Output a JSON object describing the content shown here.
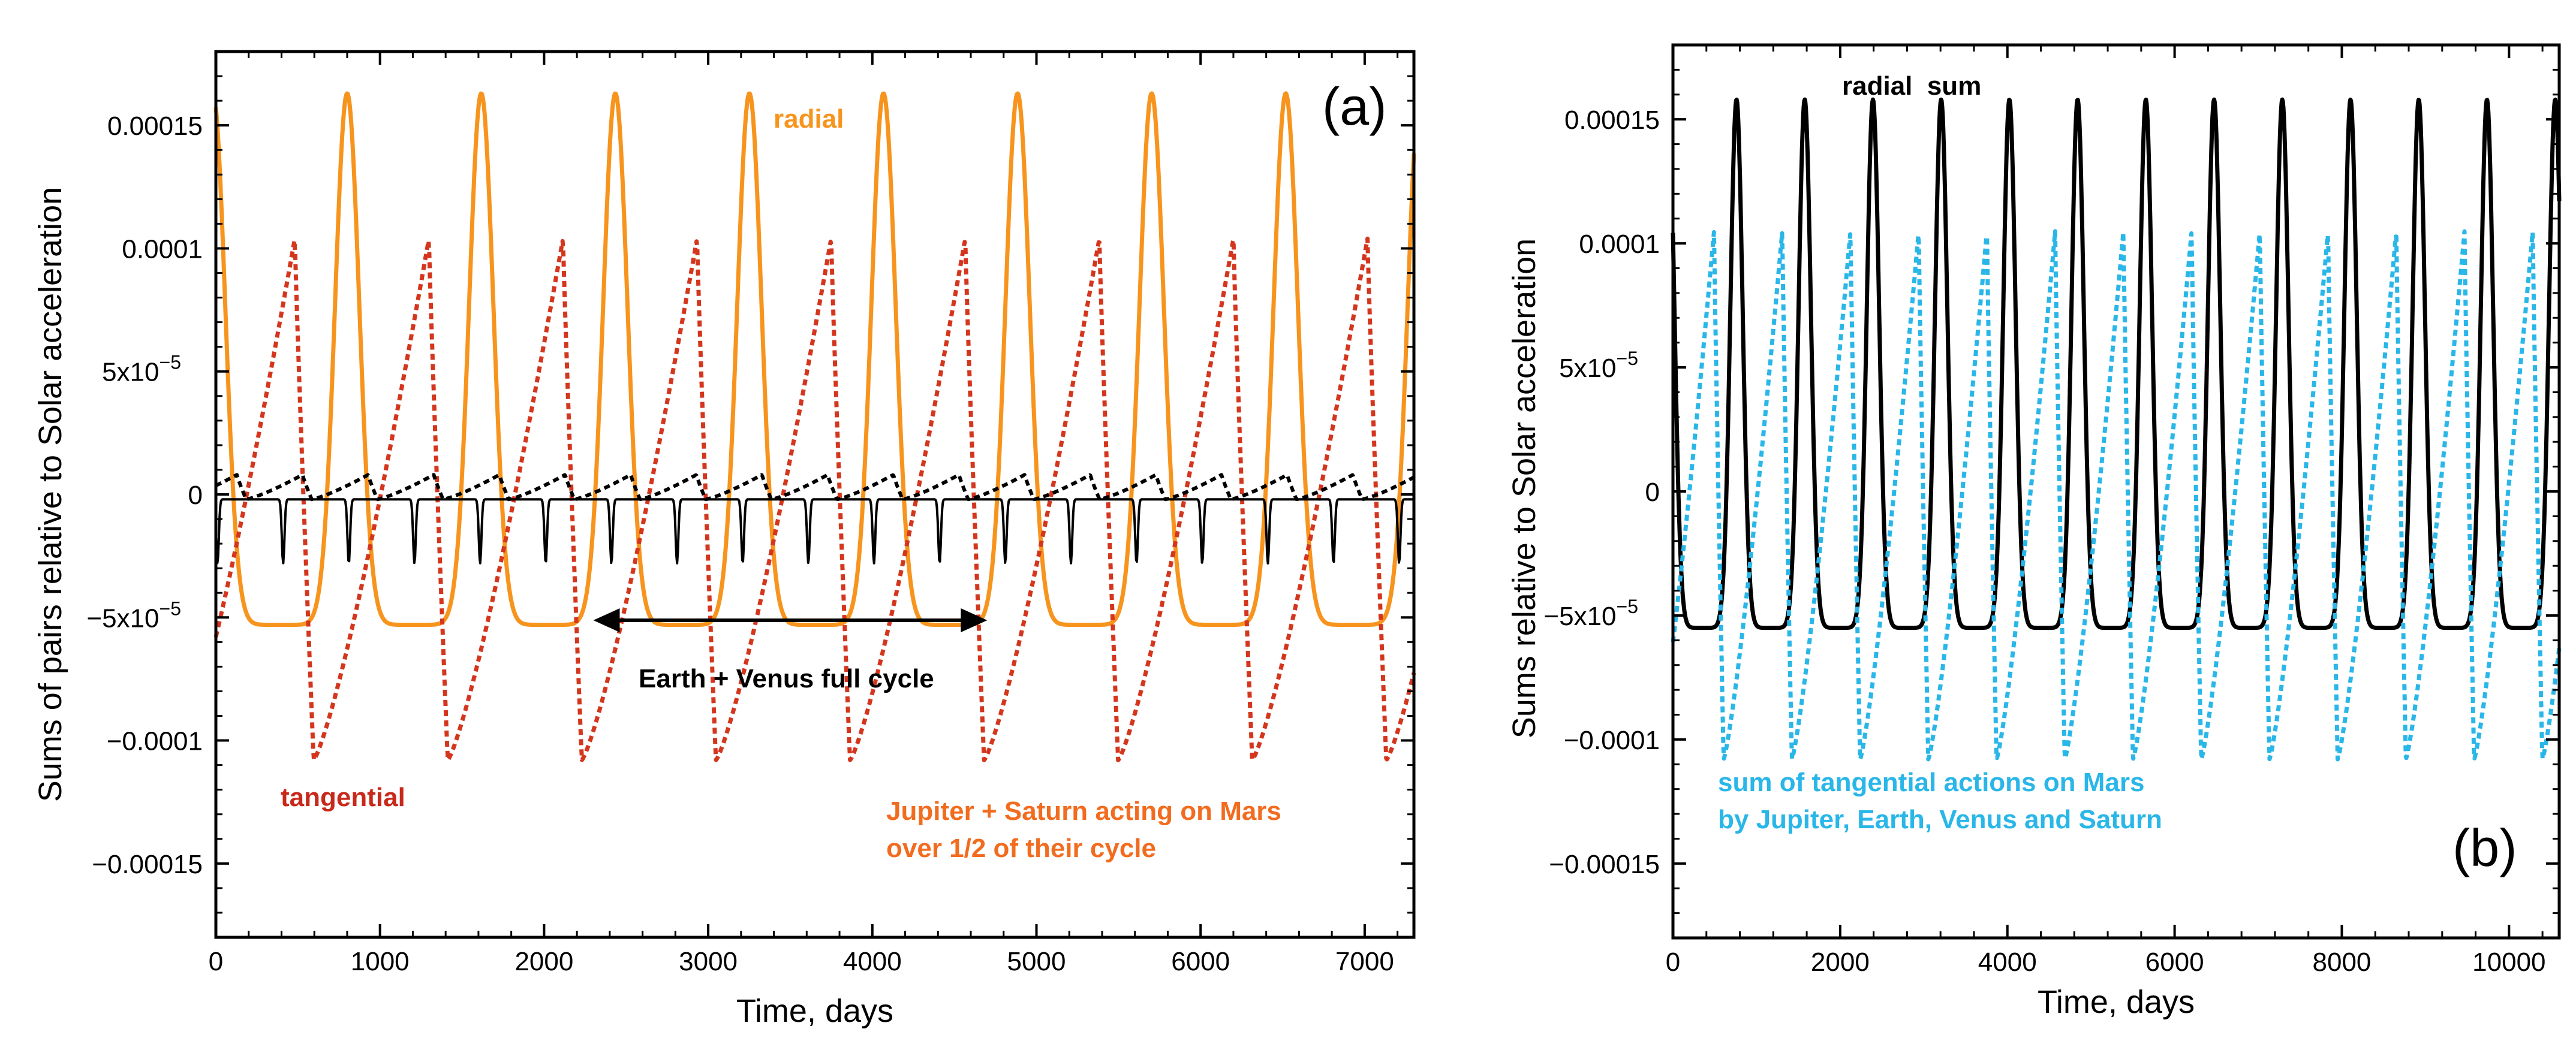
{
  "chart_data": [
    {
      "type": "line",
      "panel_label": "(a)",
      "xlabel": "Time, days",
      "ylabel": "Sums of pairs relative to Solar acceleration",
      "xlim": [
        0,
        7300
      ],
      "ylim": [
        -0.00018,
        0.00018
      ],
      "x_ticks": [
        {
          "value": 0,
          "label": "0"
        },
        {
          "value": 1000,
          "label": "1000"
        },
        {
          "value": 2000,
          "label": "2000"
        },
        {
          "value": 3000,
          "label": "3000"
        },
        {
          "value": 4000,
          "label": "4000"
        },
        {
          "value": 5000,
          "label": "5000"
        },
        {
          "value": 6000,
          "label": "6000"
        },
        {
          "value": 7000,
          "label": "7000"
        }
      ],
      "y_ticks": [
        {
          "value": 0.00015,
          "label": "0.00015"
        },
        {
          "value": 0.0001,
          "label": "0.0001"
        },
        {
          "value": 5e-05,
          "label": "5x10",
          "sup": "−5"
        },
        {
          "value": 0,
          "label": "0"
        },
        {
          "value": -5e-05,
          "label": "−5x10",
          "sup": "−5"
        },
        {
          "value": -0.0001,
          "label": "−0.0001"
        },
        {
          "value": -0.00015,
          "label": "−0.00015"
        }
      ],
      "series": [
        {
          "name": "radial",
          "label": "radial",
          "color": "#F7941D",
          "style": "solid",
          "model": "radial",
          "period": 817,
          "phase": 800,
          "max": 0.000163,
          "min": -5.3e-05
        },
        {
          "name": "tangential",
          "label": "tangential",
          "color": "#D4361D",
          "style": "dotted",
          "model": "saw",
          "period": 817,
          "phase": 710,
          "max": 0.000104,
          "min": -0.000108
        },
        {
          "name": "Earth + Venus radial",
          "label": "",
          "color": "#000000",
          "style": "solid",
          "model": "spikes",
          "period": 400,
          "phase": 10,
          "max": -2e-06,
          "min": -2.8e-05
        },
        {
          "name": "Earth + Venus tangential",
          "label": "",
          "color": "#000000",
          "style": "dotted",
          "model": "saw",
          "period": 400,
          "phase": 240,
          "max": 8e-06,
          "min": -2e-06
        }
      ],
      "annotations": {
        "radial_label": "radial",
        "tangential_label": "tangential",
        "cycle_label": "Earth + Venus full cycle",
        "cycle_range": [
          2300,
          4700
        ],
        "cycle_y": -5.3e-05,
        "jupiter_saturn_line1": "Jupiter + Saturn acting on Mars",
        "jupiter_saturn_line2": "over 1/2 of their cycle"
      },
      "colors": {
        "radial": "#F7941D",
        "tangential_label": "#C8291B",
        "jupiter_saturn_label": "#F26C1F",
        "black": "#000000"
      }
    },
    {
      "type": "line",
      "panel_label": "(b)",
      "xlabel": "Time, days",
      "ylabel": "Sums relative to Solar acceleration",
      "xlim": [
        0,
        10600
      ],
      "ylim": [
        -0.00018,
        0.00018
      ],
      "x_ticks": [
        {
          "value": 0,
          "label": "0"
        },
        {
          "value": 2000,
          "label": "2000"
        },
        {
          "value": 4000,
          "label": "4000"
        },
        {
          "value": 6000,
          "label": "6000"
        },
        {
          "value": 8000,
          "label": "8000"
        },
        {
          "value": 10000,
          "label": "10000"
        }
      ],
      "y_ticks": [
        {
          "value": 0.00015,
          "label": "0.00015"
        },
        {
          "value": 0.0001,
          "label": "0.0001"
        },
        {
          "value": 5e-05,
          "label": "5x10",
          "sup": "−5"
        },
        {
          "value": 0,
          "label": "0"
        },
        {
          "value": -5e-05,
          "label": "−5x10",
          "sup": "−5"
        },
        {
          "value": -0.0001,
          "label": "−0.0001"
        },
        {
          "value": -0.00015,
          "label": "−0.00015"
        }
      ],
      "series": [
        {
          "name": "radial sum",
          "label": "radial  sum",
          "color": "#000000",
          "style": "solid",
          "model": "radial",
          "period": 816,
          "phase": 760,
          "max": 0.000158,
          "min": -5.5e-05
        },
        {
          "name": "sum of tangential actions on Mars",
          "label": "sum of tangential actions on Mars by Jupiter, Earth, Venus and Saturn",
          "color": "#29B6E8",
          "style": "dotted",
          "model": "saw",
          "period": 816,
          "phase": 720,
          "max": 0.000105,
          "min": -0.000108
        }
      ],
      "annotations": {
        "radial_sum_label": "radial  sum",
        "tangential_line1": "sum of tangential actions on Mars",
        "tangential_line2": "by Jupiter, Earth, Venus and Saturn"
      },
      "colors": {
        "tangential": "#29B6E8",
        "black": "#000000"
      }
    }
  ]
}
